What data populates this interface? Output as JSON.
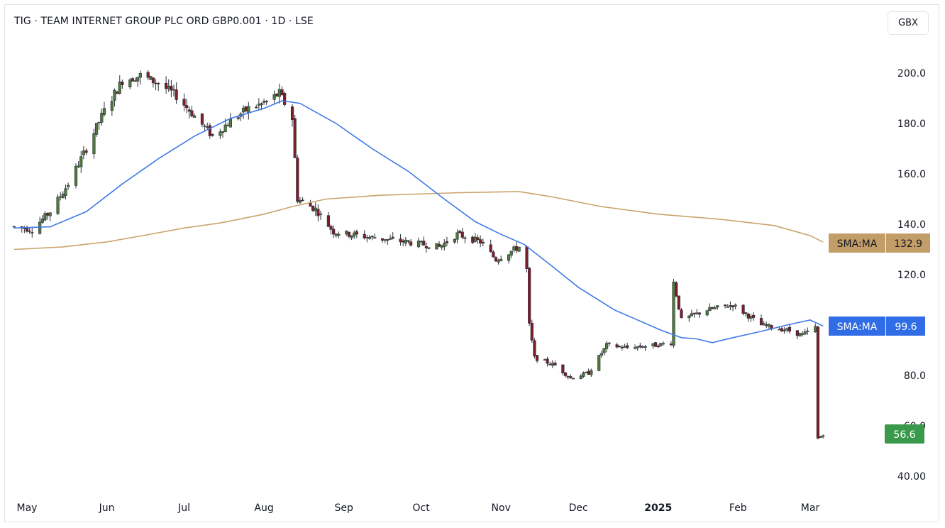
{
  "header": {
    "title": "TIG · TEAM INTERNET GROUP PLC ORD GBP0.001 · 1D · LSE",
    "currency": "GBX"
  },
  "chart_data": {
    "type": "candlestick",
    "ylim": [
      40,
      210
    ],
    "y_ticks": [
      "200.0",
      "180.0",
      "160.0",
      "140.0",
      "120.0",
      "80.0",
      "60.0",
      "40.00"
    ],
    "x_ticks": [
      {
        "label": "May",
        "date": "2024-05-01"
      },
      {
        "label": "Jun",
        "date": "2024-06-01"
      },
      {
        "label": "Jul",
        "date": "2024-07-01"
      },
      {
        "label": "Aug",
        "date": "2024-08-01"
      },
      {
        "label": "Sep",
        "date": "2024-09-01"
      },
      {
        "label": "Oct",
        "date": "2024-10-01"
      },
      {
        "label": "Nov",
        "date": "2024-11-01"
      },
      {
        "label": "Dec",
        "date": "2024-12-01"
      },
      {
        "label": "2025",
        "date": "2025-01-01",
        "bold": true
      },
      {
        "label": "Feb",
        "date": "2025-02-01"
      },
      {
        "label": "Mar",
        "date": "2025-03-01"
      }
    ],
    "colors": {
      "up": "#4f7a3c",
      "down": "#7c1f2b",
      "sma_short": "#3f7ae6",
      "sma_long": "#c9a46b",
      "last": "#3a9a4b"
    },
    "anchors": [
      [
        "2024-04-26",
        139
      ],
      [
        "2024-05-03",
        138
      ],
      [
        "2024-05-10",
        145
      ],
      [
        "2024-05-17",
        156
      ],
      [
        "2024-05-24",
        170
      ],
      [
        "2024-05-31",
        185
      ],
      [
        "2024-06-07",
        197
      ],
      [
        "2024-06-14",
        199
      ],
      [
        "2024-06-21",
        196
      ],
      [
        "2024-06-28",
        191
      ],
      [
        "2024-07-05",
        183
      ],
      [
        "2024-07-12",
        175
      ],
      [
        "2024-07-19",
        181
      ],
      [
        "2024-07-26",
        186
      ],
      [
        "2024-08-01",
        188
      ],
      [
        "2024-08-07",
        192
      ],
      [
        "2024-08-12",
        182
      ],
      [
        "2024-08-14",
        150
      ],
      [
        "2024-08-21",
        146
      ],
      [
        "2024-08-28",
        137
      ],
      [
        "2024-09-10",
        135
      ],
      [
        "2024-09-25",
        133
      ],
      [
        "2024-10-08",
        131
      ],
      [
        "2024-10-15",
        136
      ],
      [
        "2024-10-24",
        133
      ],
      [
        "2024-10-30",
        126
      ],
      [
        "2024-11-08",
        131
      ],
      [
        "2024-11-11",
        122
      ],
      [
        "2024-11-12",
        100
      ],
      [
        "2024-11-14",
        87
      ],
      [
        "2024-11-22",
        84
      ],
      [
        "2024-11-28",
        79
      ],
      [
        "2024-12-05",
        81
      ],
      [
        "2024-12-12",
        92
      ],
      [
        "2024-12-20",
        91
      ],
      [
        "2024-12-31",
        92
      ],
      [
        "2025-01-06",
        93
      ],
      [
        "2025-01-07",
        117
      ],
      [
        "2025-01-10",
        102
      ],
      [
        "2025-01-20",
        106
      ],
      [
        "2025-01-30",
        108
      ],
      [
        "2025-02-10",
        100
      ],
      [
        "2025-02-20",
        98
      ],
      [
        "2025-02-26",
        96
      ],
      [
        "2025-03-03",
        99
      ],
      [
        "2025-03-04",
        55
      ],
      [
        "2025-03-06",
        56.6
      ]
    ],
    "sma_short": {
      "label": "SMA:MA",
      "value": "99.6",
      "points": [
        [
          "2024-04-26",
          138.5
        ],
        [
          "2024-05-10",
          139
        ],
        [
          "2024-05-24",
          145
        ],
        [
          "2024-06-07",
          156
        ],
        [
          "2024-06-21",
          166
        ],
        [
          "2024-07-05",
          175
        ],
        [
          "2024-07-19",
          182
        ],
        [
          "2024-08-01",
          186
        ],
        [
          "2024-08-08",
          189
        ],
        [
          "2024-08-15",
          188
        ],
        [
          "2024-08-29",
          180
        ],
        [
          "2024-09-12",
          170
        ],
        [
          "2024-09-26",
          161
        ],
        [
          "2024-10-10",
          150
        ],
        [
          "2024-10-22",
          141
        ],
        [
          "2024-11-01",
          136
        ],
        [
          "2024-11-10",
          132
        ],
        [
          "2024-11-20",
          124
        ],
        [
          "2024-12-01",
          115
        ],
        [
          "2024-12-15",
          106
        ],
        [
          "2025-01-02",
          98
        ],
        [
          "2025-01-10",
          95
        ],
        [
          "2025-01-16",
          94.5
        ],
        [
          "2025-01-22",
          93
        ],
        [
          "2025-01-30",
          95
        ],
        [
          "2025-02-10",
          97.5
        ],
        [
          "2025-02-20",
          100
        ],
        [
          "2025-03-01",
          102
        ],
        [
          "2025-03-06",
          99.6
        ]
      ]
    },
    "sma_long": {
      "label": "SMA:MA",
      "value": "132.9",
      "points": [
        [
          "2024-04-26",
          130
        ],
        [
          "2024-05-15",
          131
        ],
        [
          "2024-06-01",
          133
        ],
        [
          "2024-06-15",
          135.5
        ],
        [
          "2024-07-01",
          138.5
        ],
        [
          "2024-07-15",
          140.5
        ],
        [
          "2024-08-01",
          144
        ],
        [
          "2024-08-12",
          147
        ],
        [
          "2024-08-25",
          150
        ],
        [
          "2024-09-15",
          151.5
        ],
        [
          "2024-10-15",
          152.5
        ],
        [
          "2024-11-08",
          153
        ],
        [
          "2024-11-20",
          151
        ],
        [
          "2024-12-10",
          147
        ],
        [
          "2025-01-01",
          144
        ],
        [
          "2025-01-25",
          142
        ],
        [
          "2025-02-15",
          139.5
        ],
        [
          "2025-03-01",
          135.5
        ],
        [
          "2025-03-06",
          132.9
        ]
      ]
    },
    "last_price": "56.6"
  }
}
